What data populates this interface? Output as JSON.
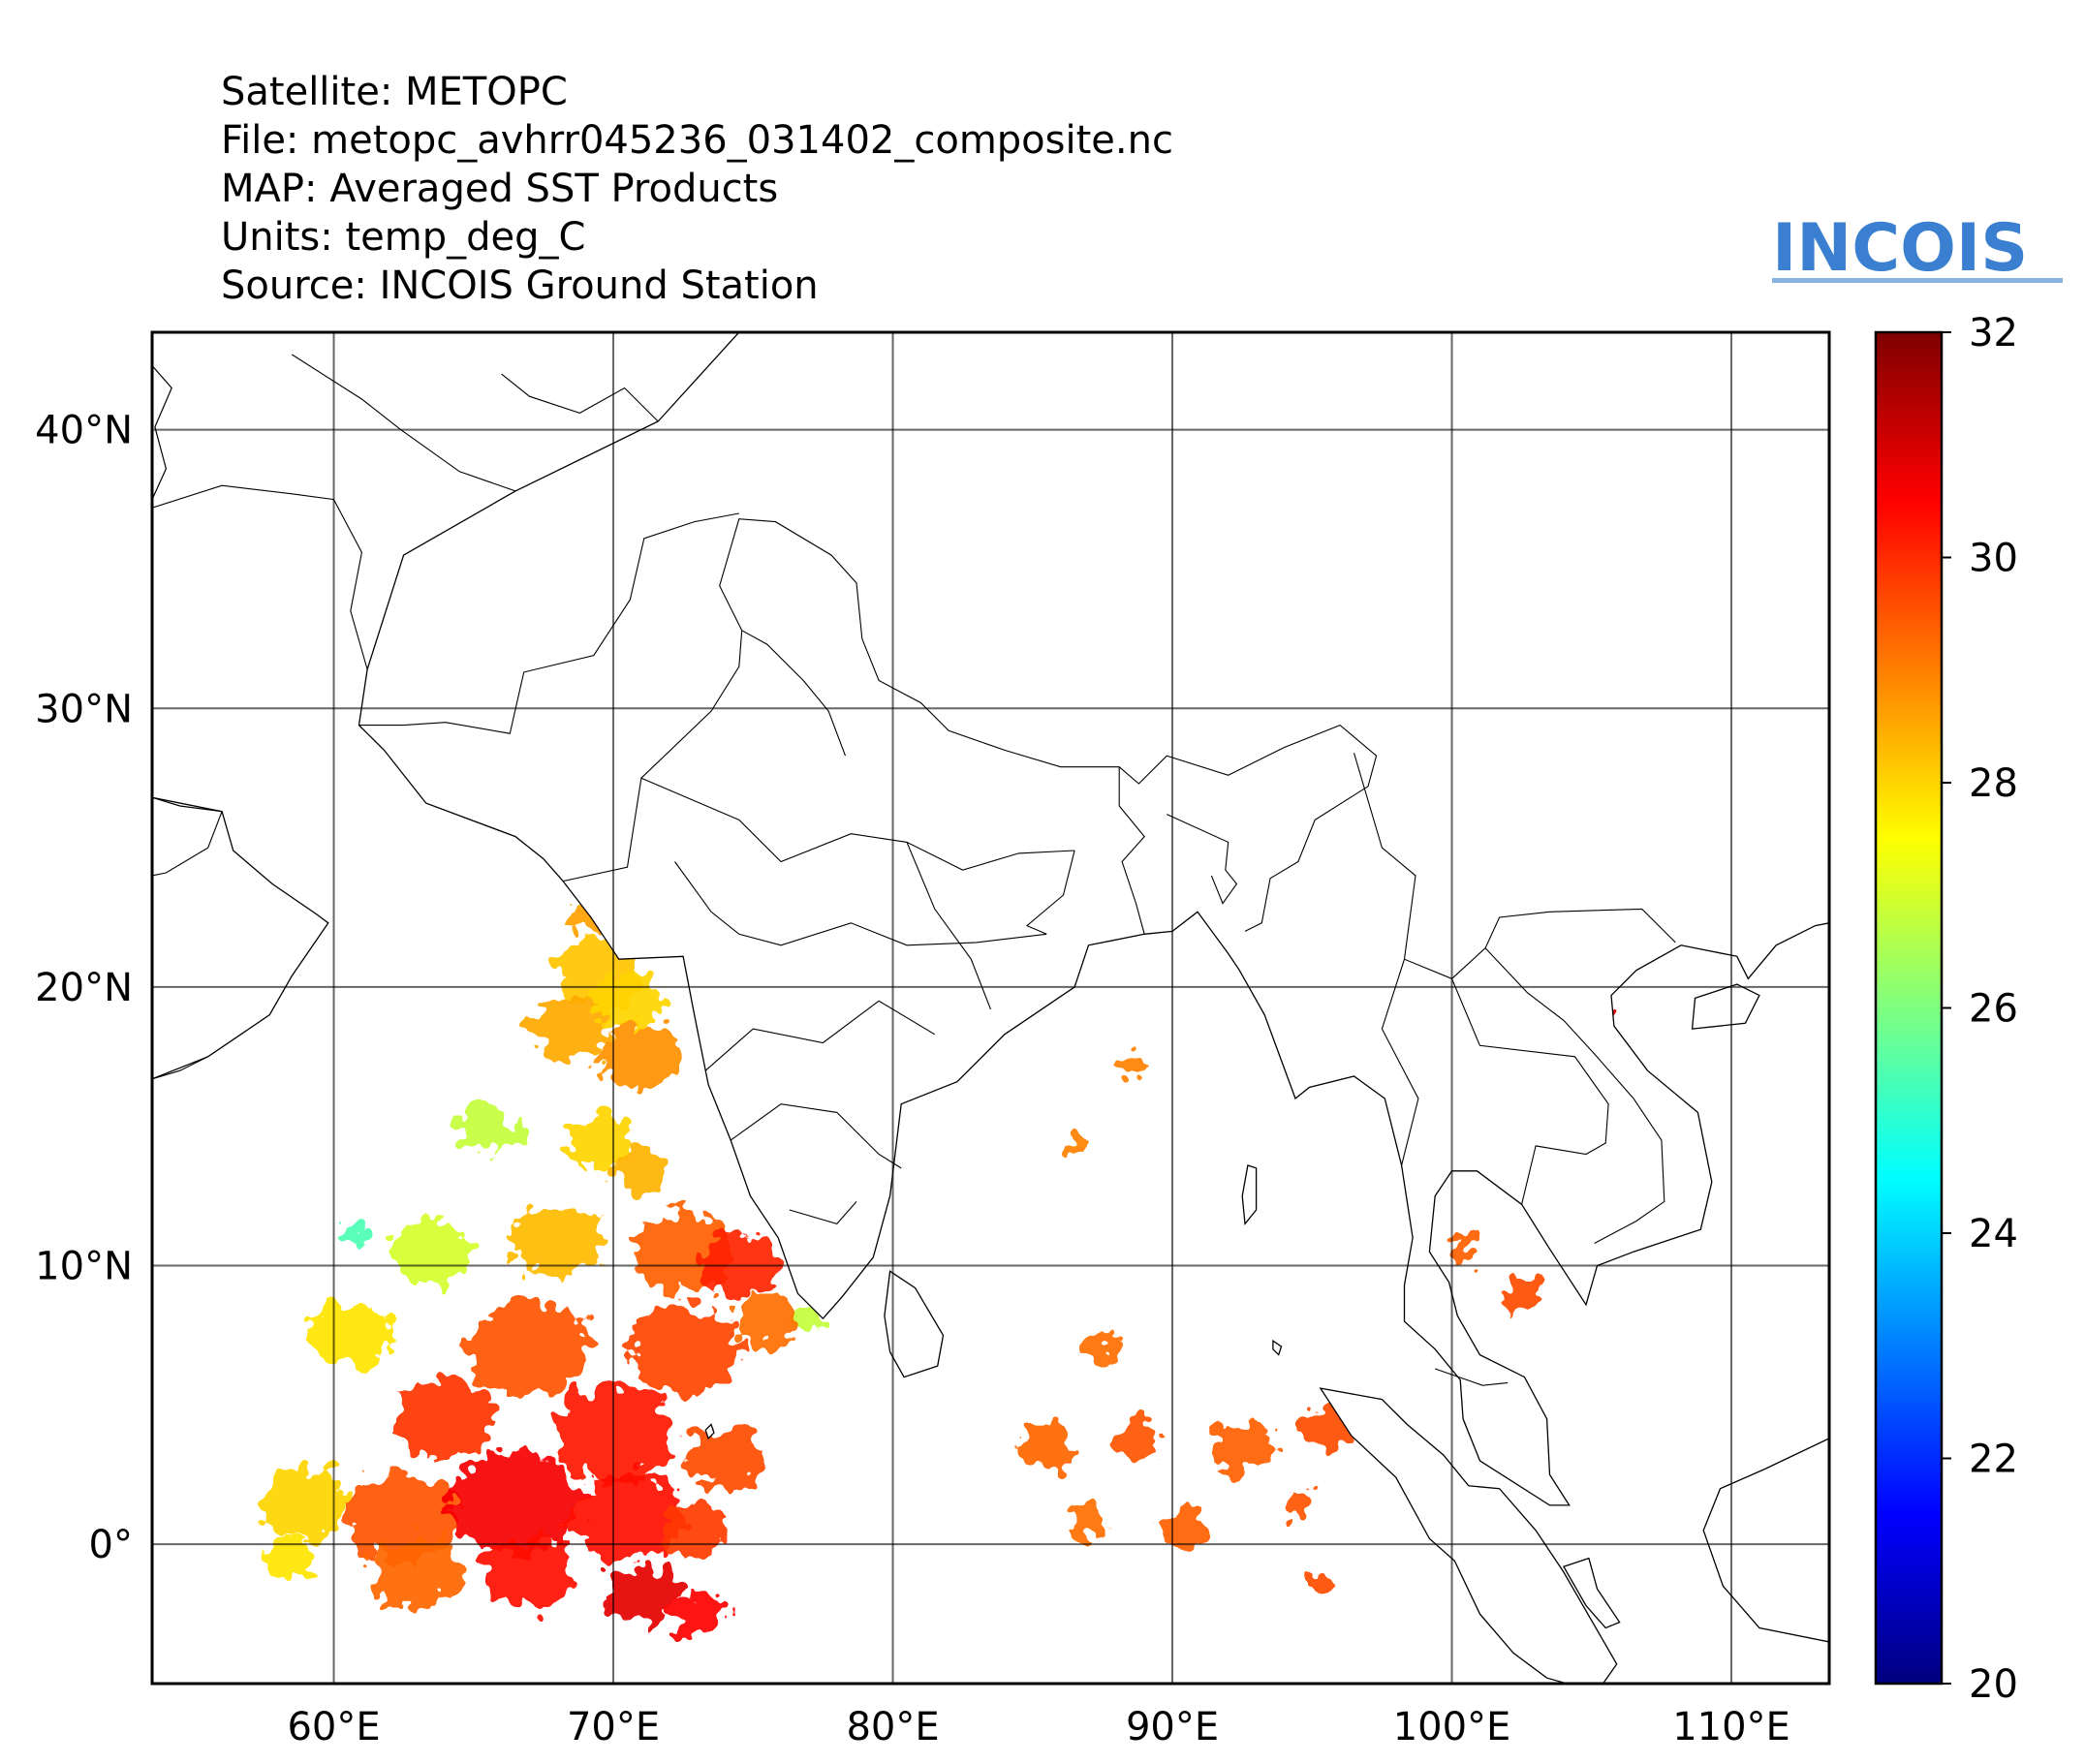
{
  "header": {
    "satellite": "Satellite: METOPC",
    "file": "File: metopc_avhrr045236_031402_composite.nc",
    "map": "MAP: Averaged SST Products",
    "units": "Units: temp_deg_C",
    "source": "Source: INCOIS Ground Station"
  },
  "logo": {
    "text": "INCOIS",
    "color": "#3b7fd0"
  },
  "map": {
    "lon_range": [
      53.5,
      113.5
    ],
    "lat_range": [
      -5,
      43.5
    ],
    "gridlines": true,
    "lon_ticks": [
      60,
      70,
      80,
      90,
      100,
      110
    ],
    "lat_ticks": [
      0,
      10,
      20,
      30,
      40
    ],
    "lon_tick_labels": [
      "60°E",
      "70°E",
      "80°E",
      "90°E",
      "100°E",
      "110°E"
    ],
    "lat_tick_labels": [
      "0°",
      "10°N",
      "20°N",
      "30°N",
      "40°N"
    ]
  },
  "colorbar": {
    "min": 20,
    "max": 32,
    "tick_values": [
      20,
      22,
      24,
      26,
      28,
      30,
      32
    ],
    "tick_labels": [
      "20",
      "22",
      "24",
      "26",
      "28",
      "30",
      "32"
    ],
    "colormap": "jet",
    "colors": [
      "#00007f",
      "#0000ff",
      "#007fff",
      "#00ffff",
      "#7fff7f",
      "#ffff00",
      "#ff7f00",
      "#ff0000",
      "#7f0000"
    ]
  },
  "sst_patches": [
    {
      "lon": 69.5,
      "lat": 20.5,
      "r": 1.6,
      "temp": 28.2
    },
    {
      "lon": 68.5,
      "lat": 18.5,
      "r": 1.4,
      "temp": 28.5
    },
    {
      "lon": 71.0,
      "lat": 17.5,
      "r": 1.5,
      "temp": 28.8
    },
    {
      "lon": 70.5,
      "lat": 19.5,
      "r": 1.2,
      "temp": 28.0
    },
    {
      "lon": 69.2,
      "lat": 22.5,
      "r": 0.7,
      "temp": 28.6
    },
    {
      "lon": 65.5,
      "lat": 15.0,
      "r": 1.1,
      "temp": 26.8
    },
    {
      "lon": 69.5,
      "lat": 14.5,
      "r": 1.2,
      "temp": 28.0
    },
    {
      "lon": 71.0,
      "lat": 13.5,
      "r": 1.0,
      "temp": 28.4
    },
    {
      "lon": 60.8,
      "lat": 11.2,
      "r": 0.5,
      "temp": 25.4
    },
    {
      "lon": 63.5,
      "lat": 10.5,
      "r": 1.4,
      "temp": 27.0
    },
    {
      "lon": 68.0,
      "lat": 10.8,
      "r": 1.6,
      "temp": 28.3
    },
    {
      "lon": 72.5,
      "lat": 10.5,
      "r": 1.8,
      "temp": 29.4
    },
    {
      "lon": 74.5,
      "lat": 10.0,
      "r": 1.4,
      "temp": 30.1
    },
    {
      "lon": 77.0,
      "lat": 8.0,
      "r": 0.6,
      "temp": 26.8
    },
    {
      "lon": 60.5,
      "lat": 7.5,
      "r": 1.5,
      "temp": 27.8
    },
    {
      "lon": 67.0,
      "lat": 7.0,
      "r": 2.2,
      "temp": 29.5
    },
    {
      "lon": 72.5,
      "lat": 7.0,
      "r": 2.0,
      "temp": 29.7
    },
    {
      "lon": 75.5,
      "lat": 8.0,
      "r": 1.2,
      "temp": 29.2
    },
    {
      "lon": 64.0,
      "lat": 4.5,
      "r": 1.8,
      "temp": 29.9
    },
    {
      "lon": 70.0,
      "lat": 4.0,
      "r": 2.2,
      "temp": 30.2
    },
    {
      "lon": 74.0,
      "lat": 3.0,
      "r": 1.4,
      "temp": 29.6
    },
    {
      "lon": 59.0,
      "lat": 1.5,
      "r": 1.6,
      "temp": 28.0
    },
    {
      "lon": 62.5,
      "lat": 1.0,
      "r": 2.0,
      "temp": 29.5
    },
    {
      "lon": 66.5,
      "lat": 1.5,
      "r": 2.3,
      "temp": 30.6
    },
    {
      "lon": 70.5,
      "lat": 1.0,
      "r": 2.0,
      "temp": 30.4
    },
    {
      "lon": 73.0,
      "lat": 0.5,
      "r": 1.2,
      "temp": 29.8
    },
    {
      "lon": 58.5,
      "lat": -0.5,
      "r": 0.9,
      "temp": 27.8
    },
    {
      "lon": 63.0,
      "lat": -1.0,
      "r": 1.6,
      "temp": 29.3
    },
    {
      "lon": 67.0,
      "lat": -1.0,
      "r": 1.6,
      "temp": 30.3
    },
    {
      "lon": 71.0,
      "lat": -1.8,
      "r": 1.3,
      "temp": 30.8
    },
    {
      "lon": 73.0,
      "lat": -2.5,
      "r": 1.0,
      "temp": 30.5
    },
    {
      "lon": 86.7,
      "lat": 14.3,
      "r": 0.5,
      "temp": 29.0
    },
    {
      "lon": 88.5,
      "lat": 17.2,
      "r": 0.6,
      "temp": 29.0
    },
    {
      "lon": 85.5,
      "lat": 3.5,
      "r": 1.0,
      "temp": 29.3
    },
    {
      "lon": 87.5,
      "lat": 7.0,
      "r": 0.7,
      "temp": 29.2
    },
    {
      "lon": 88.8,
      "lat": 3.8,
      "r": 0.9,
      "temp": 29.5
    },
    {
      "lon": 92.5,
      "lat": 3.5,
      "r": 1.1,
      "temp": 29.4
    },
    {
      "lon": 95.5,
      "lat": 4.2,
      "r": 0.9,
      "temp": 29.6
    },
    {
      "lon": 90.5,
      "lat": 0.5,
      "r": 0.8,
      "temp": 29.4
    },
    {
      "lon": 87.0,
      "lat": 0.8,
      "r": 0.7,
      "temp": 29.2
    },
    {
      "lon": 94.5,
      "lat": 1.5,
      "r": 0.6,
      "temp": 29.5
    },
    {
      "lon": 95.2,
      "lat": -1.3,
      "r": 0.4,
      "temp": 29.6
    },
    {
      "lon": 100.5,
      "lat": 10.5,
      "r": 0.5,
      "temp": 29.4
    },
    {
      "lon": 102.5,
      "lat": 9.0,
      "r": 0.7,
      "temp": 29.6
    },
    {
      "lon": 105.5,
      "lat": 19.0,
      "r": 0.25,
      "temp": 31.0
    }
  ],
  "land_polygons": [
    [
      [
        68.2,
        23.8
      ],
      [
        69.2,
        22.5
      ],
      [
        70.2,
        21.0
      ],
      [
        72.5,
        21.1
      ],
      [
        72.9,
        19.0
      ],
      [
        73.4,
        16.5
      ],
      [
        74.2,
        14.5
      ],
      [
        74.9,
        12.5
      ],
      [
        75.9,
        11.0
      ],
      [
        76.6,
        9.0
      ],
      [
        77.5,
        8.1
      ],
      [
        78.2,
        8.9
      ],
      [
        79.3,
        10.3
      ],
      [
        79.9,
        12.5
      ],
      [
        80.3,
        15.8
      ],
      [
        82.3,
        16.6
      ],
      [
        84.0,
        18.3
      ],
      [
        86.5,
        20.0
      ],
      [
        87.0,
        21.5
      ],
      [
        89.0,
        21.9
      ],
      [
        90.0,
        22.0
      ],
      [
        90.9,
        22.7
      ],
      [
        92.0,
        21.2
      ],
      [
        92.4,
        20.6
      ],
      [
        93.3,
        19.0
      ],
      [
        94.4,
        16.0
      ],
      [
        94.9,
        16.4
      ],
      [
        96.5,
        16.8
      ],
      [
        97.6,
        16.0
      ],
      [
        98.2,
        13.6
      ],
      [
        98.6,
        11.0
      ],
      [
        98.3,
        9.3
      ],
      [
        98.3,
        8.0
      ],
      [
        99.4,
        7.0
      ],
      [
        100.3,
        5.9
      ],
      [
        100.4,
        4.5
      ],
      [
        101.0,
        3.0
      ],
      [
        103.5,
        1.4
      ],
      [
        104.2,
        1.4
      ],
      [
        103.5,
        2.5
      ],
      [
        103.4,
        4.5
      ],
      [
        102.6,
        6.0
      ],
      [
        101.0,
        6.8
      ],
      [
        100.2,
        8.2
      ],
      [
        99.9,
        9.4
      ],
      [
        99.2,
        10.5
      ],
      [
        99.4,
        12.5
      ],
      [
        100.0,
        13.4
      ],
      [
        100.9,
        13.4
      ],
      [
        102.5,
        12.2
      ],
      [
        103.5,
        10.6
      ],
      [
        104.8,
        8.6
      ],
      [
        105.2,
        10.0
      ],
      [
        106.5,
        10.5
      ],
      [
        108.9,
        11.3
      ],
      [
        109.3,
        13.0
      ],
      [
        108.8,
        15.5
      ],
      [
        107.0,
        17.0
      ],
      [
        105.8,
        18.6
      ],
      [
        105.7,
        19.7
      ],
      [
        106.6,
        20.6
      ],
      [
        108.2,
        21.5
      ],
      [
        110.2,
        21.1
      ],
      [
        110.6,
        20.3
      ],
      [
        111.6,
        21.5
      ],
      [
        113.0,
        22.2
      ],
      [
        113.5,
        22.3
      ],
      [
        113.5,
        43.5
      ],
      [
        74.5,
        43.5
      ],
      [
        71.6,
        40.3
      ],
      [
        66.5,
        37.8
      ],
      [
        62.5,
        35.5
      ],
      [
        61.2,
        31.4
      ],
      [
        60.9,
        29.4
      ],
      [
        61.8,
        28.5
      ],
      [
        63.3,
        26.6
      ],
      [
        66.5,
        25.4
      ],
      [
        67.5,
        24.6
      ],
      [
        68.2,
        23.8
      ]
    ],
    [
      [
        53.5,
        26.8
      ],
      [
        56.0,
        26.3
      ],
      [
        56.4,
        24.9
      ],
      [
        57.8,
        23.7
      ],
      [
        59.4,
        22.6
      ],
      [
        59.8,
        22.3
      ],
      [
        58.5,
        20.4
      ],
      [
        57.7,
        19.0
      ],
      [
        55.5,
        17.5
      ],
      [
        53.5,
        16.7
      ]
    ],
    [
      [
        79.9,
        9.8
      ],
      [
        80.8,
        9.2
      ],
      [
        81.8,
        7.5
      ],
      [
        81.6,
        6.4
      ],
      [
        80.4,
        6.0
      ],
      [
        79.9,
        6.9
      ],
      [
        79.7,
        8.2
      ],
      [
        79.9,
        9.8
      ]
    ],
    [
      [
        95.3,
        5.6
      ],
      [
        97.5,
        5.2
      ],
      [
        98.4,
        4.3
      ],
      [
        99.7,
        3.2
      ],
      [
        100.6,
        2.1
      ],
      [
        101.7,
        2.0
      ],
      [
        103.0,
        0.5
      ],
      [
        104.0,
        -1.0
      ],
      [
        105.9,
        -4.3
      ],
      [
        105.2,
        -5.3
      ],
      [
        103.4,
        -4.8
      ],
      [
        102.2,
        -3.9
      ],
      [
        101.0,
        -2.5
      ],
      [
        100.1,
        -0.6
      ],
      [
        99.2,
        0.2
      ],
      [
        98.0,
        2.4
      ],
      [
        96.4,
        3.9
      ],
      [
        95.3,
        5.6
      ]
    ],
    [
      [
        109.6,
        2.0
      ],
      [
        111.2,
        2.7
      ],
      [
        113.5,
        3.8
      ],
      [
        113.5,
        -3.5
      ],
      [
        111.0,
        -3.0
      ],
      [
        109.7,
        -1.5
      ],
      [
        109.0,
        0.5
      ],
      [
        109.6,
        2.0
      ]
    ],
    [
      [
        108.6,
        18.5
      ],
      [
        110.5,
        18.7
      ],
      [
        111.0,
        19.7
      ],
      [
        110.2,
        20.1
      ],
      [
        108.7,
        19.6
      ],
      [
        108.6,
        18.5
      ]
    ],
    [
      [
        104.0,
        -0.8
      ],
      [
        104.9,
        -0.5
      ],
      [
        105.2,
        -1.6
      ],
      [
        106.0,
        -2.8
      ],
      [
        105.5,
        -3.0
      ],
      [
        104.8,
        -2.2
      ],
      [
        104.0,
        -0.8
      ]
    ],
    [
      [
        73.5,
        4.3
      ],
      [
        73.6,
        4.0
      ],
      [
        73.4,
        3.8
      ],
      [
        73.3,
        4.1
      ],
      [
        73.5,
        4.3
      ]
    ],
    [
      [
        92.7,
        13.6
      ],
      [
        93.0,
        13.5
      ],
      [
        93.0,
        12.0
      ],
      [
        92.6,
        11.5
      ],
      [
        92.5,
        12.5
      ],
      [
        92.7,
        13.6
      ]
    ],
    [
      [
        93.6,
        7.3
      ],
      [
        93.9,
        7.1
      ],
      [
        93.8,
        6.8
      ],
      [
        93.6,
        7.0
      ],
      [
        93.6,
        7.3
      ]
    ]
  ],
  "borders": [
    [
      [
        68.2,
        23.8
      ],
      [
        70.5,
        24.3
      ],
      [
        71.0,
        27.5
      ],
      [
        73.5,
        29.9
      ],
      [
        74.5,
        31.5
      ],
      [
        74.6,
        32.8
      ],
      [
        73.8,
        34.4
      ],
      [
        74.5,
        36.8
      ],
      [
        75.8,
        36.7
      ],
      [
        77.8,
        35.5
      ],
      [
        78.7,
        34.5
      ],
      [
        78.9,
        32.5
      ],
      [
        79.5,
        31.0
      ],
      [
        81.0,
        30.2
      ],
      [
        82.0,
        29.2
      ],
      [
        84.0,
        28.5
      ],
      [
        86.0,
        27.9
      ],
      [
        88.1,
        27.9
      ],
      [
        88.8,
        27.3
      ],
      [
        89.8,
        28.3
      ],
      [
        92.0,
        27.6
      ],
      [
        94.0,
        28.6
      ],
      [
        96.0,
        29.4
      ],
      [
        97.3,
        28.3
      ],
      [
        97.0,
        27.2
      ],
      [
        95.1,
        26.0
      ],
      [
        94.5,
        24.5
      ],
      [
        93.5,
        23.9
      ],
      [
        93.2,
        22.3
      ],
      [
        92.6,
        22.0
      ]
    ],
    [
      [
        88.1,
        27.9
      ],
      [
        88.1,
        26.5
      ],
      [
        89.0,
        25.4
      ],
      [
        88.2,
        24.5
      ],
      [
        88.7,
        23.0
      ],
      [
        89.0,
        21.9
      ]
    ],
    [
      [
        89.8,
        26.2
      ],
      [
        92.0,
        25.2
      ],
      [
        91.9,
        24.2
      ],
      [
        92.3,
        23.7
      ],
      [
        91.8,
        23.0
      ],
      [
        91.4,
        24.0
      ]
    ],
    [
      [
        74.6,
        32.8
      ],
      [
        75.5,
        32.3
      ],
      [
        76.8,
        31.0
      ],
      [
        77.7,
        29.9
      ],
      [
        78.3,
        28.3
      ]
    ],
    [
      [
        71.0,
        27.5
      ],
      [
        74.5,
        26.0
      ],
      [
        76.0,
        24.5
      ],
      [
        78.5,
        25.5
      ],
      [
        80.5,
        25.2
      ],
      [
        82.5,
        24.2
      ],
      [
        84.5,
        24.8
      ],
      [
        86.5,
        24.9
      ]
    ],
    [
      [
        72.2,
        24.5
      ],
      [
        73.5,
        22.7
      ],
      [
        74.5,
        21.9
      ],
      [
        76.0,
        21.5
      ],
      [
        78.5,
        22.3
      ],
      [
        80.5,
        21.5
      ],
      [
        83.0,
        21.6
      ],
      [
        85.5,
        21.9
      ]
    ],
    [
      [
        73.3,
        17.0
      ],
      [
        75.0,
        18.5
      ],
      [
        77.5,
        18.0
      ],
      [
        79.5,
        19.5
      ],
      [
        81.5,
        18.3
      ]
    ],
    [
      [
        74.2,
        14.5
      ],
      [
        76.0,
        15.8
      ],
      [
        78.0,
        15.5
      ],
      [
        79.5,
        14.0
      ],
      [
        80.3,
        13.5
      ]
    ],
    [
      [
        76.3,
        12.0
      ],
      [
        78.0,
        11.5
      ],
      [
        78.7,
        12.3
      ]
    ],
    [
      [
        80.5,
        25.2
      ],
      [
        81.5,
        22.8
      ],
      [
        82.8,
        21.0
      ],
      [
        83.5,
        19.2
      ]
    ],
    [
      [
        86.5,
        24.9
      ],
      [
        86.1,
        23.3
      ],
      [
        84.8,
        22.2
      ],
      [
        85.5,
        21.9
      ]
    ],
    [
      [
        96.5,
        28.4
      ],
      [
        97.5,
        25.0
      ],
      [
        98.7,
        24.0
      ],
      [
        98.3,
        21.0
      ],
      [
        100.0,
        20.3
      ],
      [
        101.2,
        21.4
      ],
      [
        101.7,
        22.5
      ],
      [
        103.5,
        22.7
      ],
      [
        106.8,
        22.8
      ],
      [
        108.0,
        21.6
      ]
    ],
    [
      [
        98.3,
        21.0
      ],
      [
        97.5,
        18.5
      ],
      [
        98.8,
        16.0
      ],
      [
        98.2,
        13.6
      ]
    ],
    [
      [
        100.0,
        20.3
      ],
      [
        101.0,
        17.9
      ],
      [
        104.4,
        17.5
      ],
      [
        105.6,
        15.8
      ],
      [
        105.5,
        14.4
      ],
      [
        104.8,
        14.0
      ],
      [
        103.0,
        14.3
      ],
      [
        102.5,
        12.2
      ]
    ],
    [
      [
        101.2,
        21.4
      ],
      [
        102.7,
        19.8
      ],
      [
        104.0,
        18.8
      ],
      [
        105.1,
        17.6
      ],
      [
        106.5,
        16.0
      ],
      [
        107.5,
        14.5
      ],
      [
        107.6,
        12.3
      ],
      [
        106.6,
        11.6
      ],
      [
        105.1,
        10.8
      ]
    ],
    [
      [
        99.4,
        6.3
      ],
      [
        101.1,
        5.7
      ],
      [
        102.0,
        5.8
      ]
    ],
    [
      [
        60.9,
        29.4
      ],
      [
        62.5,
        29.4
      ],
      [
        64.0,
        29.5
      ],
      [
        66.3,
        29.1
      ],
      [
        66.8,
        31.3
      ],
      [
        69.3,
        31.9
      ],
      [
        70.6,
        33.9
      ],
      [
        71.1,
        36.1
      ],
      [
        72.9,
        36.7
      ],
      [
        74.5,
        37.0
      ]
    ],
    [
      [
        61.2,
        31.4
      ],
      [
        60.6,
        33.5
      ],
      [
        61.0,
        35.6
      ],
      [
        60.0,
        37.5
      ],
      [
        58.5,
        37.7
      ],
      [
        56.0,
        38.0
      ],
      [
        53.5,
        37.2
      ]
    ],
    [
      [
        66.5,
        37.8
      ],
      [
        64.5,
        38.5
      ],
      [
        62.4,
        40.0
      ],
      [
        61.0,
        41.1
      ],
      [
        58.5,
        42.7
      ]
    ],
    [
      [
        71.6,
        40.3
      ],
      [
        70.4,
        41.5
      ],
      [
        68.8,
        40.6
      ],
      [
        67.0,
        41.2
      ],
      [
        66.0,
        42.0
      ]
    ],
    [
      [
        56.0,
        26.3
      ],
      [
        55.5,
        25.0
      ],
      [
        54.0,
        24.1
      ],
      [
        53.5,
        24.0
      ]
    ],
    [
      [
        55.5,
        17.5
      ],
      [
        54.5,
        17.0
      ],
      [
        53.5,
        16.7
      ]
    ]
  ],
  "inland_seas": [
    [
      [
        53.5,
        37.5
      ],
      [
        54.0,
        38.6
      ],
      [
        53.6,
        40.1
      ],
      [
        54.2,
        41.5
      ],
      [
        53.5,
        42.3
      ]
    ],
    [
      [
        53.5,
        26.8
      ],
      [
        54.5,
        26.5
      ],
      [
        56.0,
        26.3
      ]
    ]
  ]
}
